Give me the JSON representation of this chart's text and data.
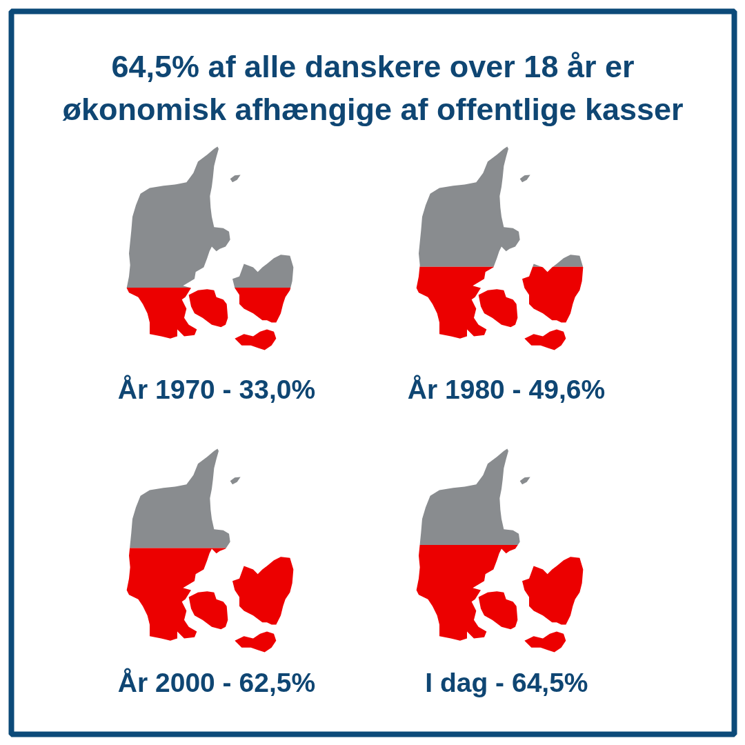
{
  "chart_data": {
    "type": "other",
    "title": "64,5% af alle danskere over 18 år er økonomisk afhængige af offentlige kasser",
    "categories": [
      "År 1970 -",
      "År 1980 -",
      "År 2000 -",
      "I dag -"
    ],
    "values": [
      33.0,
      49.6,
      62.5,
      64.5
    ],
    "value_labels": [
      "33,0%",
      "49,6%",
      "62,5%",
      "64,5%"
    ],
    "colors": [
      "#ec0000",
      "#ec0000",
      "#ec0000",
      "#ec0000"
    ],
    "color": "#898c8f"
  }
}
